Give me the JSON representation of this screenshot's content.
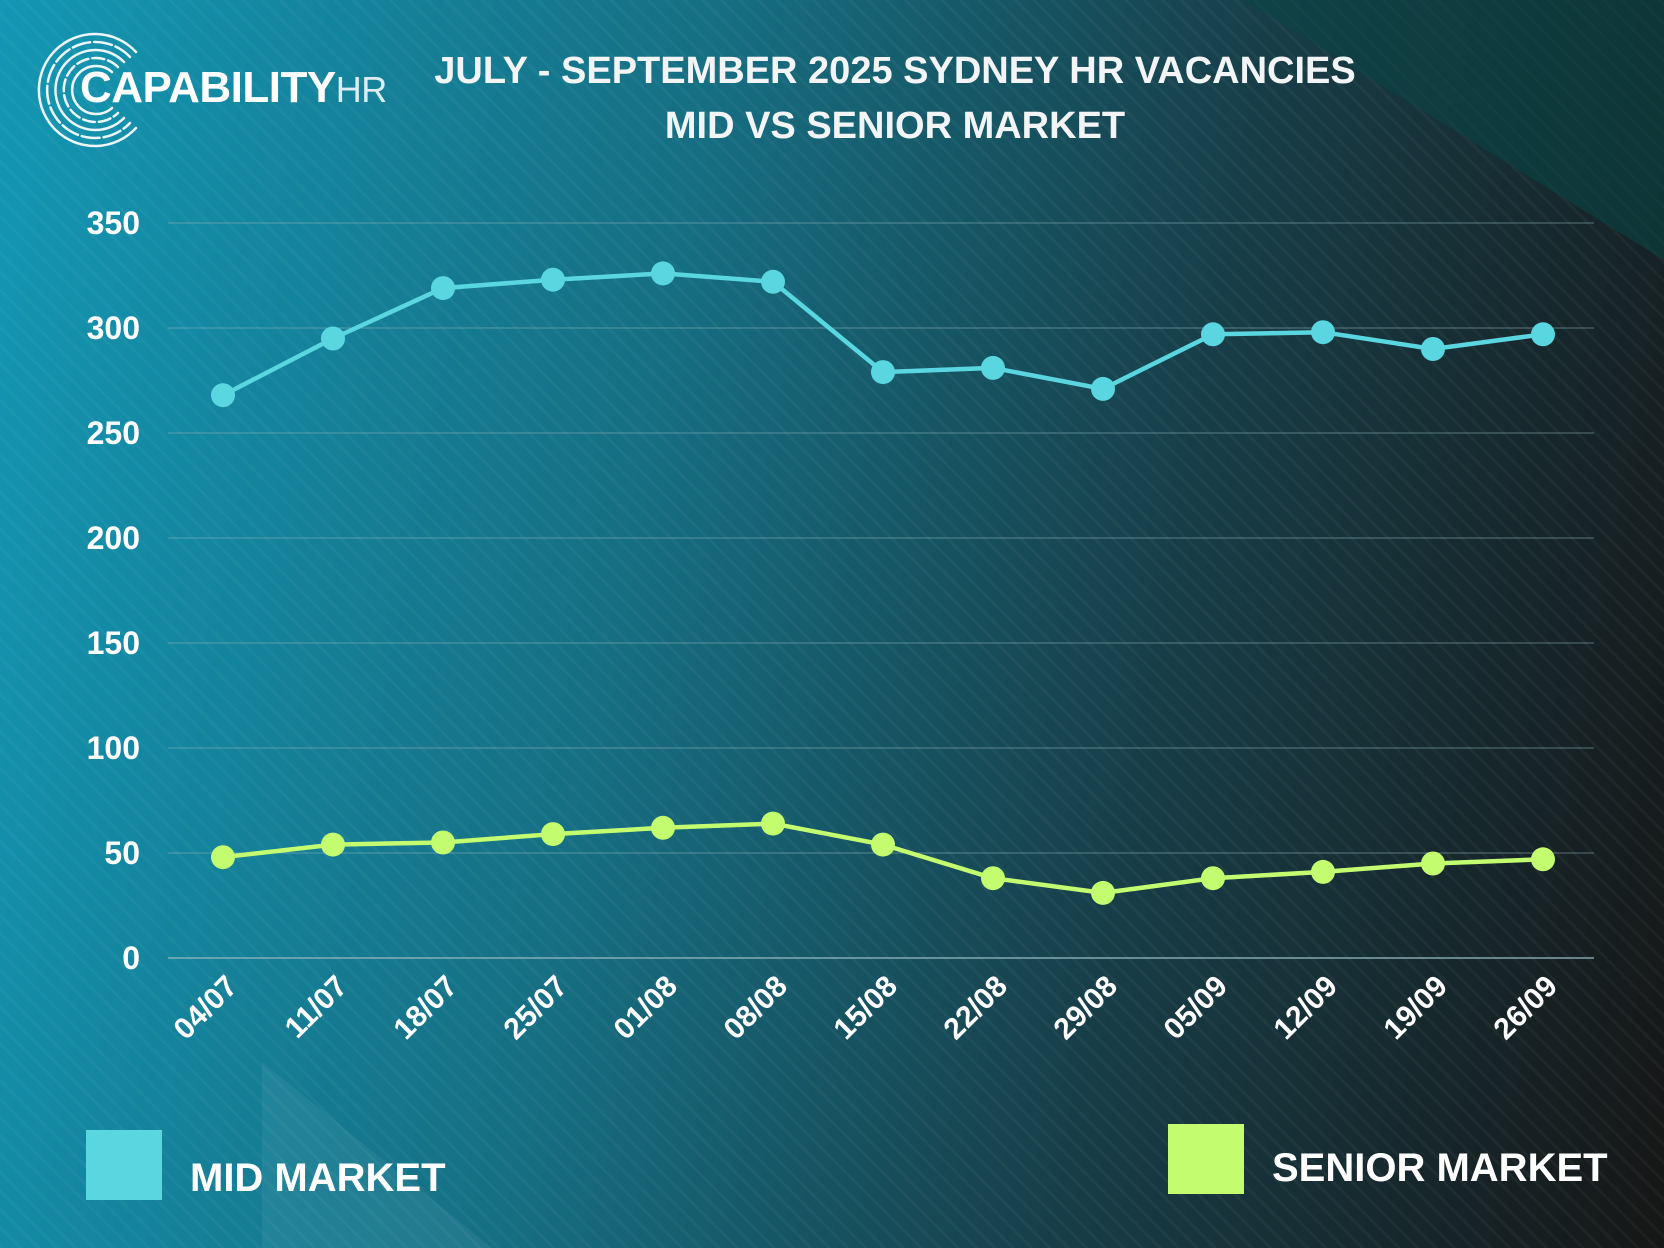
{
  "logo": {
    "brand": "CAPABILITY",
    "suffix": "HR"
  },
  "title": {
    "line1": "JULY - SEPTEMBER 2025 SYDNEY HR VACANCIES",
    "line2": "MID VS SENIOR MARKET"
  },
  "colors": {
    "mid": "#5ad6e0",
    "senior": "#c3fd6f",
    "grid": "#8fb4bc",
    "text": "#ffffff"
  },
  "chart_data": {
    "type": "line",
    "categories": [
      "04/07",
      "11/07",
      "18/07",
      "25/07",
      "01/08",
      "08/08",
      "15/08",
      "22/08",
      "29/08",
      "05/09",
      "12/09",
      "19/09",
      "26/09"
    ],
    "series": [
      {
        "name": "MID MARKET",
        "values": [
          268,
          295,
          319,
          323,
          326,
          322,
          279,
          281,
          271,
          297,
          298,
          290,
          297
        ]
      },
      {
        "name": "SENIOR MARKET",
        "values": [
          48,
          54,
          55,
          59,
          62,
          64,
          54,
          38,
          31,
          38,
          41,
          45,
          47
        ]
      }
    ],
    "y_ticks": [
      "0",
      "50",
      "100",
      "150",
      "200",
      "250",
      "300",
      "350"
    ],
    "ylim": [
      0,
      350
    ],
    "grid": true,
    "legend_position": "bottom"
  }
}
